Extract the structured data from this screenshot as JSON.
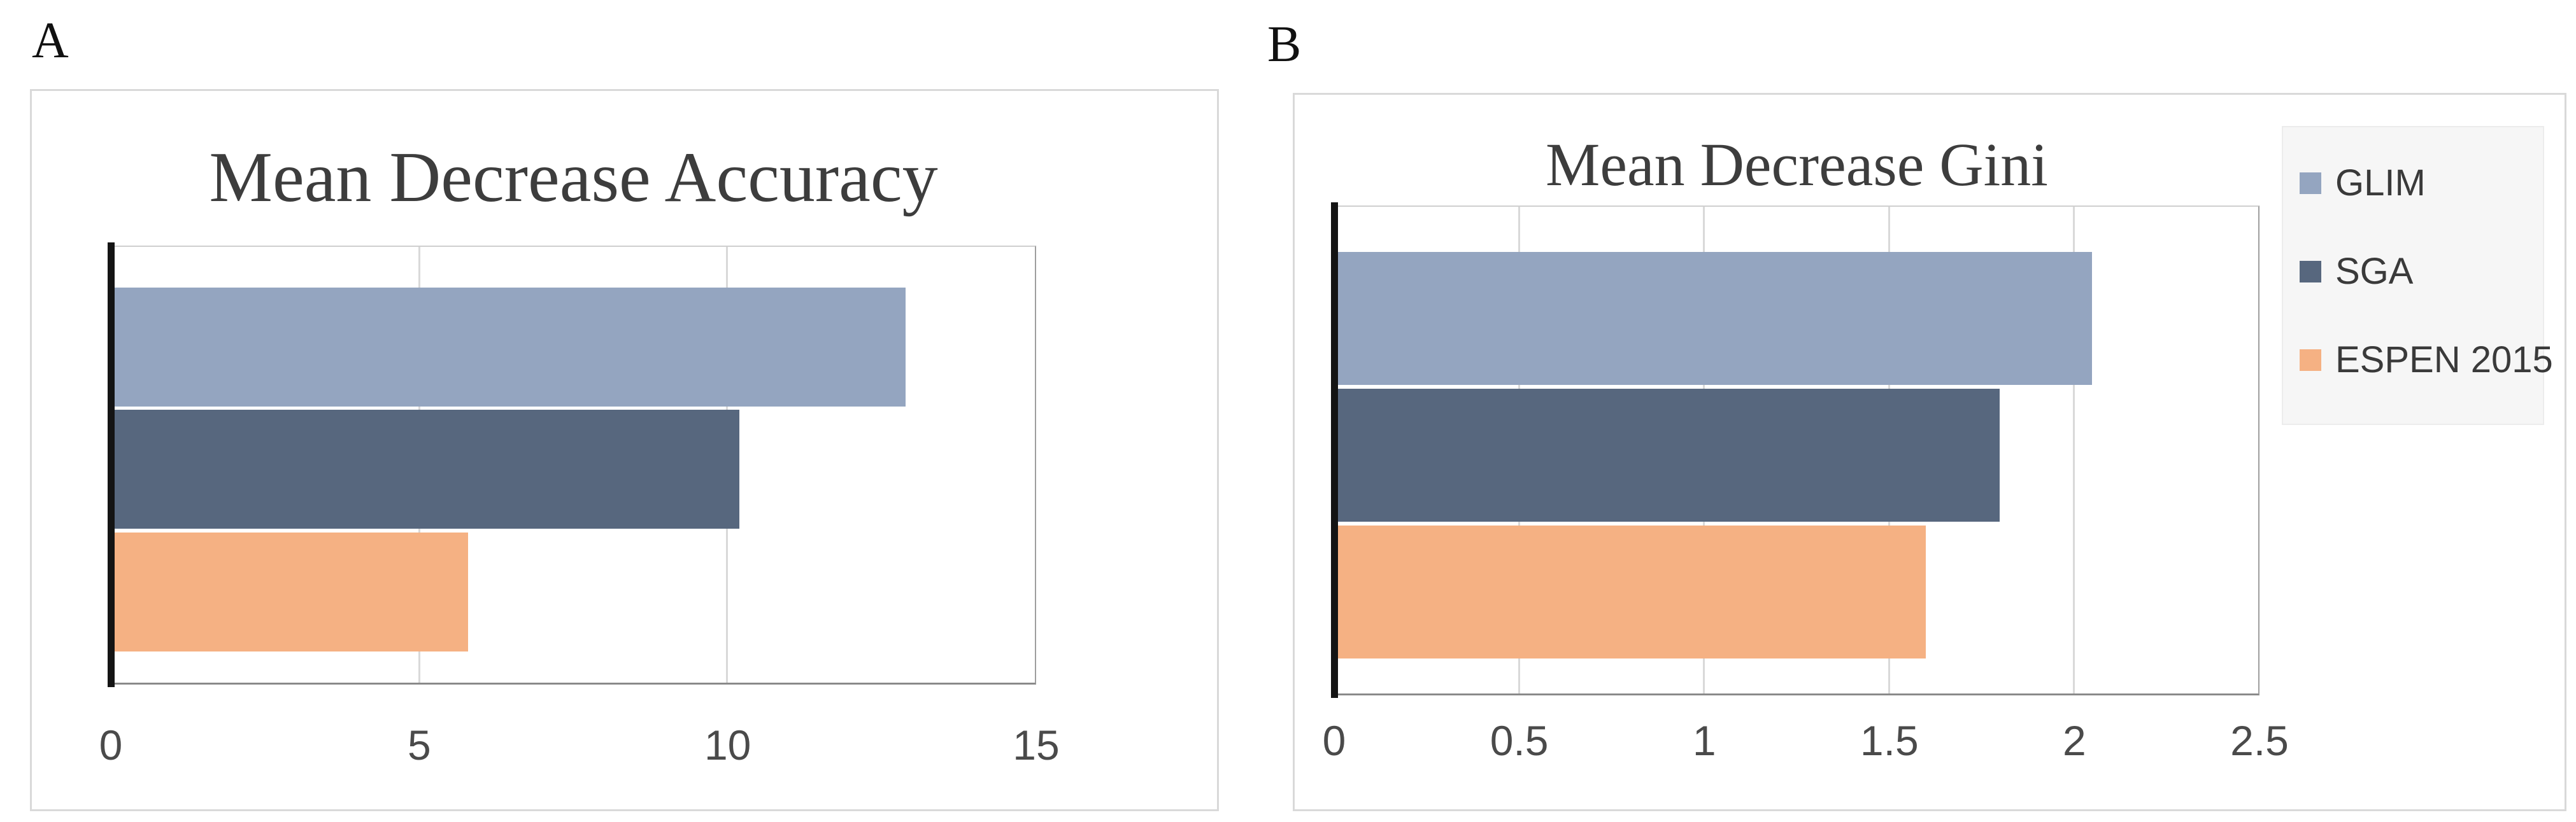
{
  "figure": {
    "background": "#ffffff",
    "panel_a_label": "A",
    "panel_b_label": "B"
  },
  "chart_data": [
    {
      "type": "bar",
      "orientation": "horizontal",
      "panel_label": "A",
      "title": "Mean Decrease Accuracy",
      "categories": [
        "GLIM",
        "SGA",
        "ESPEN 2015"
      ],
      "values": [
        12.9,
        10.2,
        5.8
      ],
      "bar_colors": [
        "#94a5c0",
        "#57677e",
        "#f5b183"
      ],
      "xlim": [
        0,
        15
      ],
      "xticks": [
        "0",
        "5",
        "10",
        "15"
      ],
      "xlabel": "",
      "ylabel": "",
      "grid": true,
      "legend": false
    },
    {
      "type": "bar",
      "orientation": "horizontal",
      "panel_label": "B",
      "title": "Mean Decrease Gini",
      "categories": [
        "GLIM",
        "SGA",
        "ESPEN 2015"
      ],
      "values": [
        2.05,
        1.8,
        1.6
      ],
      "bar_colors": [
        "#94a5c0",
        "#57677e",
        "#f5b183"
      ],
      "xlim": [
        0,
        2.5
      ],
      "xticks": [
        "0",
        "0.5",
        "1",
        "1.5",
        "2",
        "2.5"
      ],
      "xlabel": "",
      "ylabel": "",
      "grid": true,
      "legend": true,
      "legend_position": "right"
    }
  ],
  "legend": {
    "items": [
      {
        "label": "GLIM",
        "color": "#94a5c0"
      },
      {
        "label": "SGA",
        "color": "#57677e"
      },
      {
        "label": "ESPEN 2015",
        "color": "#f5b183"
      }
    ]
  },
  "colors": {
    "bar_glim": "#94a5c0",
    "bar_sga": "#57677e",
    "bar_espen_2015": "#f5b183",
    "gridline": "#d9d9d9",
    "y_axis": "#141414",
    "plot_border": "#9e9e9e",
    "panel_border": "#d9d9d9",
    "title_text": "#3d3d3d",
    "tick_text": "#4a4a4a",
    "legend_background": "#f6f6f6"
  }
}
